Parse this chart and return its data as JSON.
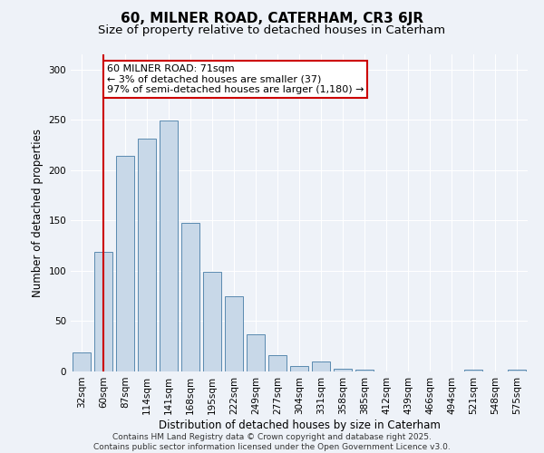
{
  "title": "60, MILNER ROAD, CATERHAM, CR3 6JR",
  "subtitle": "Size of property relative to detached houses in Caterham",
  "xlabel": "Distribution of detached houses by size in Caterham",
  "ylabel": "Number of detached properties",
  "categories": [
    "32sqm",
    "60sqm",
    "87sqm",
    "114sqm",
    "141sqm",
    "168sqm",
    "195sqm",
    "222sqm",
    "249sqm",
    "277sqm",
    "304sqm",
    "331sqm",
    "358sqm",
    "385sqm",
    "412sqm",
    "439sqm",
    "466sqm",
    "494sqm",
    "521sqm",
    "548sqm",
    "575sqm"
  ],
  "values": [
    19,
    119,
    214,
    231,
    249,
    148,
    99,
    75,
    37,
    16,
    5,
    10,
    3,
    2,
    0,
    0,
    0,
    0,
    2,
    0,
    2
  ],
  "bar_color": "#c8d8e8",
  "bar_edge_color": "#5a8ab0",
  "vline_x_index": 1,
  "vline_color": "#cc0000",
  "annotation_text": "60 MILNER ROAD: 71sqm\n← 3% of detached houses are smaller (37)\n97% of semi-detached houses are larger (1,180) →",
  "annotation_box_color": "#ffffff",
  "annotation_box_edge_color": "#cc0000",
  "ylim": [
    0,
    315
  ],
  "yticks": [
    0,
    50,
    100,
    150,
    200,
    250,
    300
  ],
  "background_color": "#eef2f8",
  "grid_color": "#ffffff",
  "footer_text": "Contains HM Land Registry data © Crown copyright and database right 2025.\nContains public sector information licensed under the Open Government Licence v3.0.",
  "title_fontsize": 11,
  "subtitle_fontsize": 9.5,
  "axis_label_fontsize": 8.5,
  "tick_fontsize": 7.5,
  "annotation_fontsize": 8,
  "footer_fontsize": 6.5
}
